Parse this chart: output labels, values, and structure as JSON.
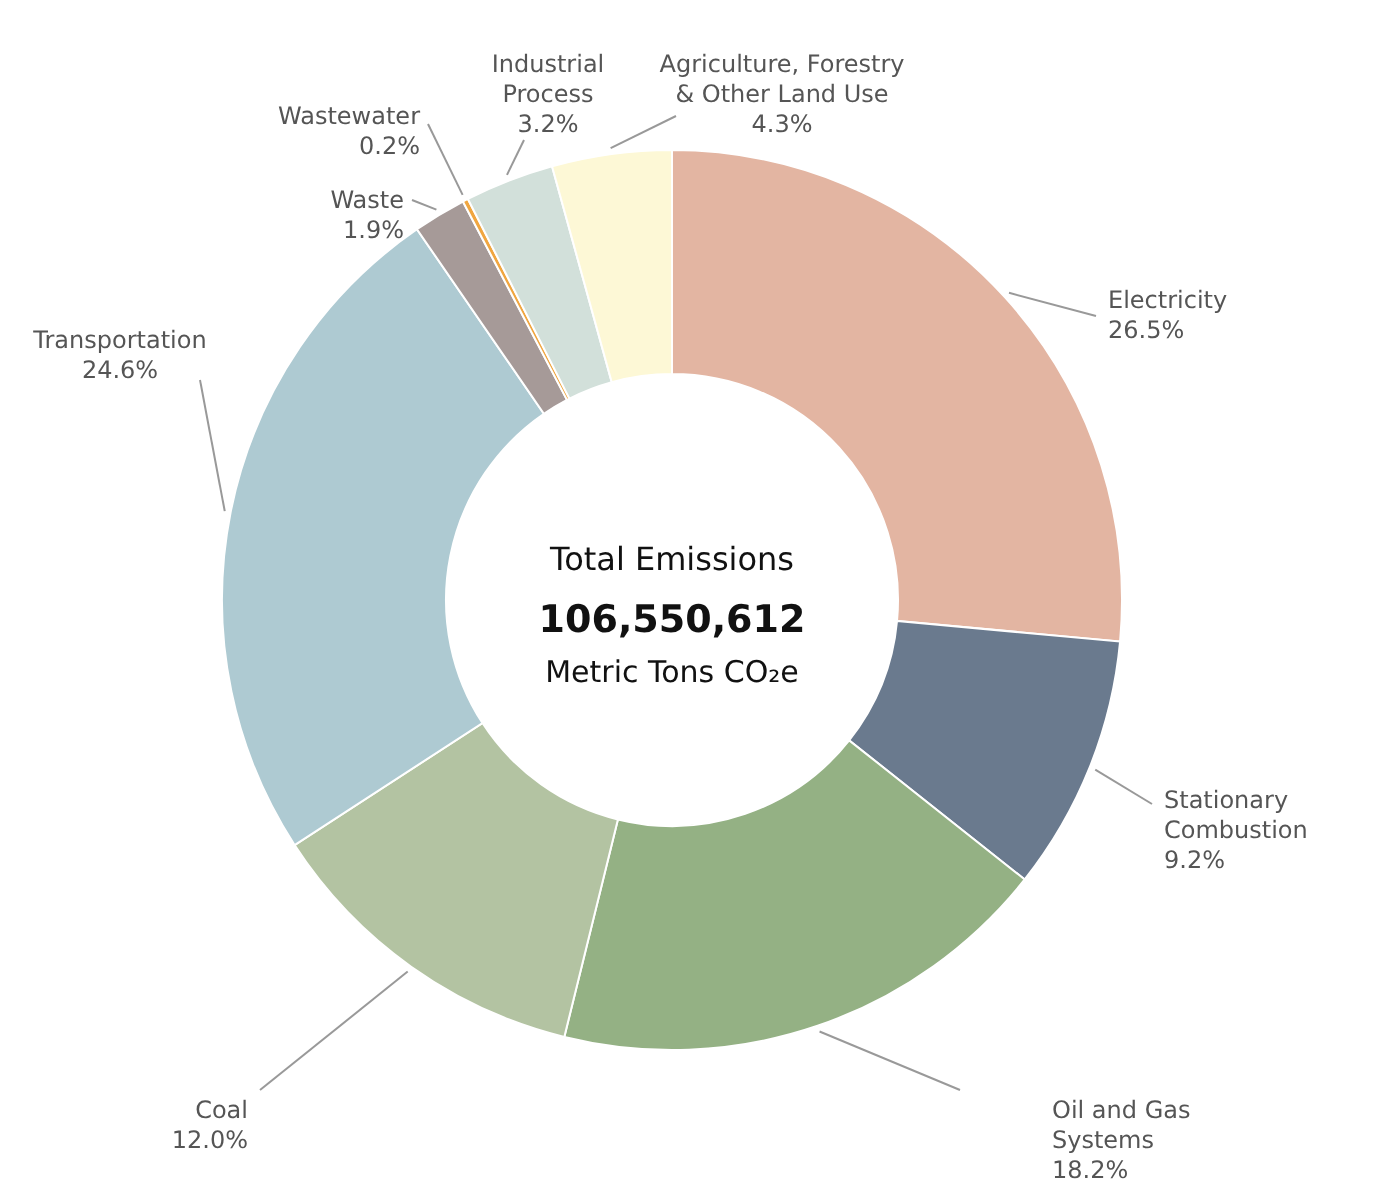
{
  "chart_data": {
    "type": "donut",
    "categories": [
      "Electricity",
      "Stationary Combustion",
      "Oil and Gas Systems",
      "Coal",
      "Transportation",
      "Waste",
      "Wastewater",
      "Industrial Process",
      "Agriculture, Forestry & Other Land Use"
    ],
    "values": [
      26.5,
      9.2,
      18.2,
      12.0,
      24.6,
      1.9,
      0.2,
      3.2,
      4.3
    ],
    "value_labels": [
      "26.5%",
      "9.2%",
      "18.2%",
      "12.0%",
      "24.6%",
      "1.9%",
      "0.2%",
      "3.2%",
      "4.3%"
    ],
    "colors": [
      "#e3b5a2",
      "#6a7a8e",
      "#94b184",
      "#b3c3a2",
      "#aecad2",
      "#a69a98",
      "#f0a640",
      "#d2e0da",
      "#fdf8d6"
    ],
    "annotations": [
      "Total Emissions",
      "106,550,612",
      "Metric Tons CO₂e"
    ]
  }
}
